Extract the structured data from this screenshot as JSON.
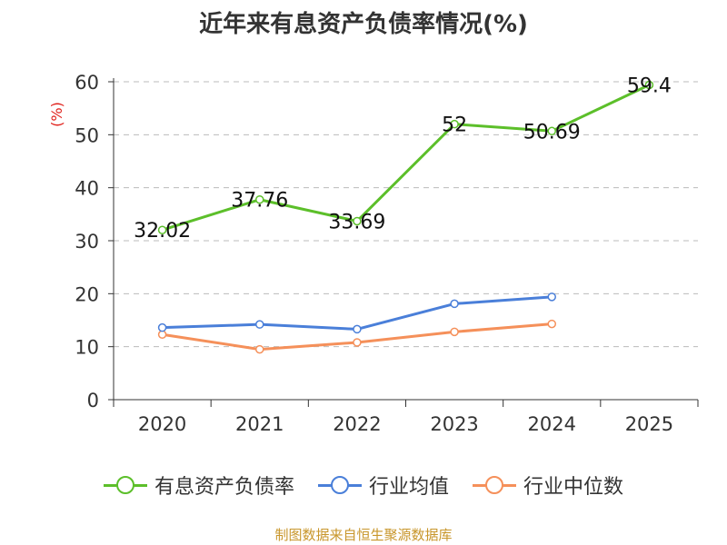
{
  "chart_data": {
    "type": "line",
    "title": "近年来有息资产负债率情况(%)",
    "ylabel": "(%)",
    "categories": [
      "2020",
      "2021",
      "2022",
      "2023",
      "2024",
      "2025"
    ],
    "ylim": [
      0,
      60
    ],
    "yticks": [
      0,
      10,
      20,
      30,
      40,
      50,
      60
    ],
    "grid": true,
    "legend_position": "bottom",
    "series": [
      {
        "name": "有息资产负债率",
        "color": "#5cbf2a",
        "values": [
          32.02,
          37.76,
          33.69,
          52,
          50.69,
          59.4
        ],
        "labels": [
          "32.02",
          "37.76",
          "33.69",
          "52",
          "50.69",
          "59.4"
        ]
      },
      {
        "name": "行业均值",
        "color": "#4a7fd9",
        "values": [
          13.6,
          14.2,
          13.3,
          18.1,
          19.4,
          null
        ]
      },
      {
        "name": "行业中位数",
        "color": "#f5905a",
        "values": [
          12.3,
          9.5,
          10.8,
          12.8,
          14.3,
          null
        ]
      }
    ]
  },
  "source": "制图数据来自恒生聚源数据库"
}
